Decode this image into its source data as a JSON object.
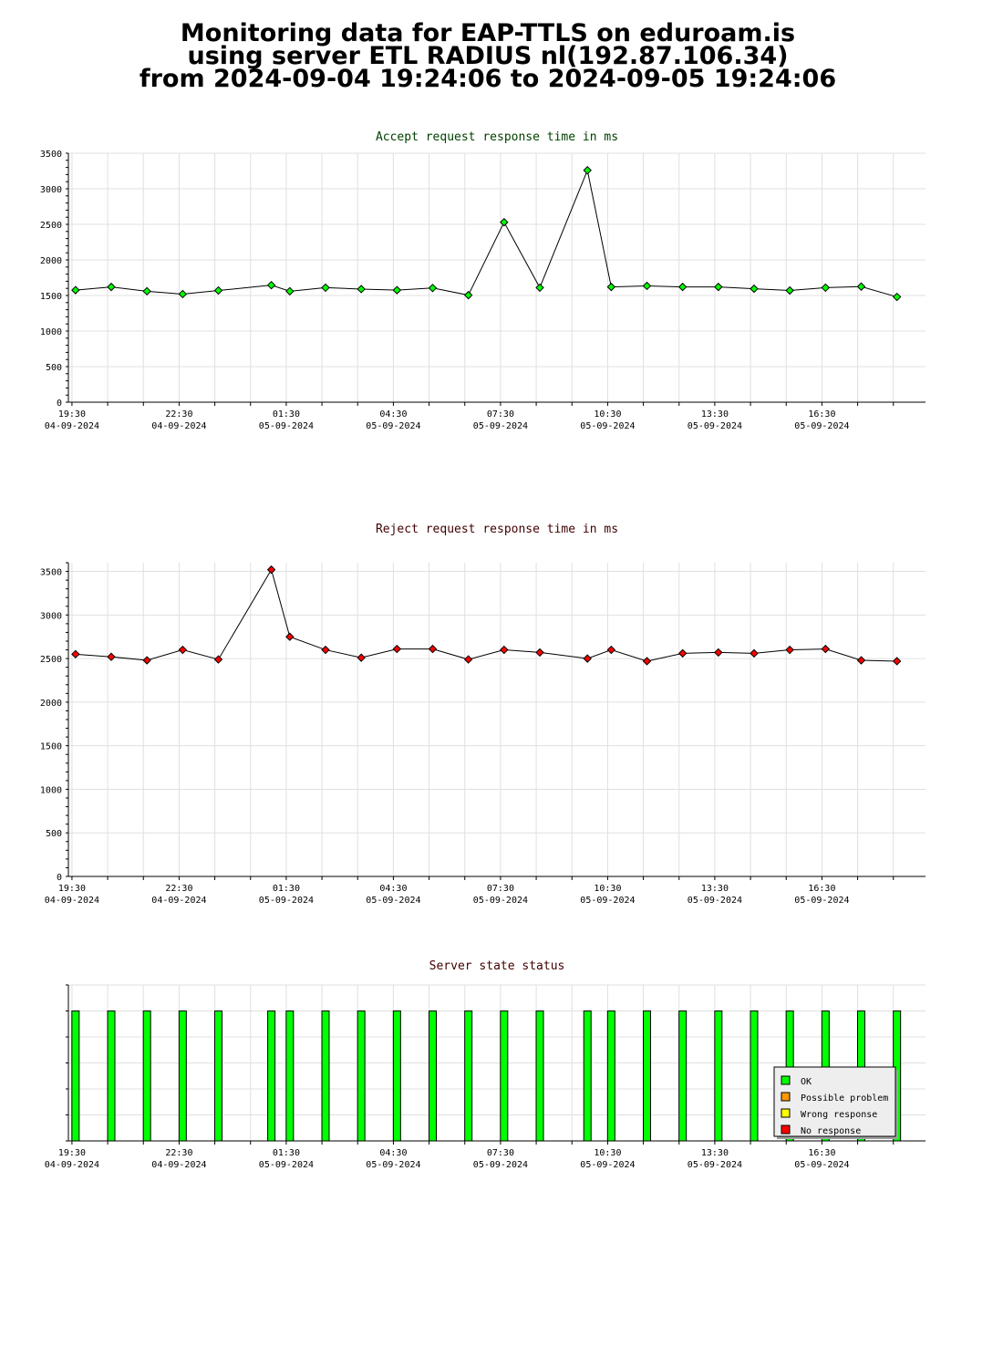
{
  "header": {
    "line1": "Monitoring data for EAP-TTLS on eduroam.is",
    "line2": "using server ETL RADIUS nl(192.87.106.34)",
    "line3": "from 2024-09-04 19:24:06 to 2024-09-05 19:24:06"
  },
  "colors": {
    "accept_title": "#004000",
    "reject_title": "#400000",
    "state_title": "#400000",
    "accept_point": "#00ff00",
    "reject_point": "#ff0000",
    "ok": "#00ff00",
    "possible_problem": "#ff9900",
    "wrong_response": "#ffff00",
    "no_response": "#ff0000"
  },
  "chart_data": [
    {
      "type": "line",
      "title": "Accept request response time in ms",
      "ylim": [
        0,
        3500
      ],
      "yticks": [
        0,
        500,
        1000,
        1500,
        2000,
        2500,
        3000,
        3500
      ],
      "xlim": [
        "2024-09-04 19:24",
        "2024-09-05 19:24"
      ],
      "x_tick_labels": [
        {
          "x": "2024-09-04 19:30",
          "time": "19:30",
          "date": "04-09-2024"
        },
        {
          "x": "2024-09-04 22:30",
          "time": "22:30",
          "date": "04-09-2024"
        },
        {
          "x": "2024-09-05 01:30",
          "time": "01:30",
          "date": "05-09-2024"
        },
        {
          "x": "2024-09-05 04:30",
          "time": "04:30",
          "date": "05-09-2024"
        },
        {
          "x": "2024-09-05 07:30",
          "time": "07:30",
          "date": "05-09-2024"
        },
        {
          "x": "2024-09-05 10:30",
          "time": "10:30",
          "date": "05-09-2024"
        },
        {
          "x": "2024-09-05 13:30",
          "time": "13:30",
          "date": "05-09-2024"
        },
        {
          "x": "2024-09-05 16:30",
          "time": "16:30",
          "date": "05-09-2024"
        }
      ],
      "grid": true,
      "series": [
        {
          "x": [
            "2024-09-04 19:36",
            "2024-09-04 20:36",
            "2024-09-04 21:36",
            "2024-09-04 22:36",
            "2024-09-04 23:36",
            "2024-09-05 01:05",
            "2024-09-05 01:36",
            "2024-09-05 02:36",
            "2024-09-05 03:36",
            "2024-09-05 04:36",
            "2024-09-05 05:36",
            "2024-09-05 06:36",
            "2024-09-05 07:36",
            "2024-09-05 08:36",
            "2024-09-05 09:56",
            "2024-09-05 10:36",
            "2024-09-05 11:36",
            "2024-09-05 12:36",
            "2024-09-05 13:36",
            "2024-09-05 14:36",
            "2024-09-05 15:36",
            "2024-09-05 16:36",
            "2024-09-05 17:36",
            "2024-09-05 18:36"
          ],
          "values": [
            1575,
            1620,
            1560,
            1520,
            1570,
            1645,
            1560,
            1610,
            1590,
            1575,
            1605,
            1505,
            2530,
            1610,
            3260,
            1620,
            1635,
            1620,
            1620,
            1595,
            1570,
            1610,
            1625,
            1480
          ]
        }
      ]
    },
    {
      "type": "line",
      "title": "Reject request response time in ms",
      "ylim": [
        0,
        3600
      ],
      "yticks": [
        0,
        500,
        1000,
        1500,
        2000,
        2500,
        3000,
        3500
      ],
      "xlim": [
        "2024-09-04 19:24",
        "2024-09-05 19:24"
      ],
      "x_tick_labels": [
        {
          "x": "2024-09-04 19:30",
          "time": "19:30",
          "date": "04-09-2024"
        },
        {
          "x": "2024-09-04 22:30",
          "time": "22:30",
          "date": "04-09-2024"
        },
        {
          "x": "2024-09-05 01:30",
          "time": "01:30",
          "date": "05-09-2024"
        },
        {
          "x": "2024-09-05 04:30",
          "time": "04:30",
          "date": "05-09-2024"
        },
        {
          "x": "2024-09-05 07:30",
          "time": "07:30",
          "date": "05-09-2024"
        },
        {
          "x": "2024-09-05 10:30",
          "time": "10:30",
          "date": "05-09-2024"
        },
        {
          "x": "2024-09-05 13:30",
          "time": "13:30",
          "date": "05-09-2024"
        },
        {
          "x": "2024-09-05 16:30",
          "time": "16:30",
          "date": "05-09-2024"
        }
      ],
      "grid": true,
      "series": [
        {
          "x": [
            "2024-09-04 19:36",
            "2024-09-04 20:36",
            "2024-09-04 21:36",
            "2024-09-04 22:36",
            "2024-09-04 23:36",
            "2024-09-05 01:05",
            "2024-09-05 01:36",
            "2024-09-05 02:36",
            "2024-09-05 03:36",
            "2024-09-05 04:36",
            "2024-09-05 05:36",
            "2024-09-05 06:36",
            "2024-09-05 07:36",
            "2024-09-05 08:36",
            "2024-09-05 09:56",
            "2024-09-05 10:36",
            "2024-09-05 11:36",
            "2024-09-05 12:36",
            "2024-09-05 13:36",
            "2024-09-05 14:36",
            "2024-09-05 15:36",
            "2024-09-05 16:36",
            "2024-09-05 17:36",
            "2024-09-05 18:36"
          ],
          "values": [
            2550,
            2520,
            2480,
            2600,
            2490,
            3520,
            2750,
            2600,
            2510,
            2610,
            2610,
            2490,
            2600,
            2570,
            2500,
            2600,
            2470,
            2560,
            2570,
            2560,
            2600,
            2610,
            2480,
            2470
          ]
        }
      ]
    },
    {
      "type": "bar",
      "title": "Server state status",
      "xlim": [
        "2024-09-04 19:24",
        "2024-09-05 19:24"
      ],
      "x_tick_labels": [
        {
          "x": "2024-09-04 19:30",
          "time": "19:30",
          "date": "04-09-2024"
        },
        {
          "x": "2024-09-04 22:30",
          "time": "22:30",
          "date": "04-09-2024"
        },
        {
          "x": "2024-09-05 01:30",
          "time": "01:30",
          "date": "05-09-2024"
        },
        {
          "x": "2024-09-05 04:30",
          "time": "04:30",
          "date": "05-09-2024"
        },
        {
          "x": "2024-09-05 07:30",
          "time": "07:30",
          "date": "05-09-2024"
        },
        {
          "x": "2024-09-05 10:30",
          "time": "10:30",
          "date": "05-09-2024"
        },
        {
          "x": "2024-09-05 13:30",
          "time": "13:30",
          "date": "05-09-2024"
        },
        {
          "x": "2024-09-05 16:30",
          "time": "16:30",
          "date": "05-09-2024"
        }
      ],
      "grid": true,
      "legend": {
        "position": "bottom-right",
        "items": [
          {
            "label": "OK",
            "color": "#00ff00"
          },
          {
            "label": "Possible problem",
            "color": "#ff9900"
          },
          {
            "label": "Wrong response",
            "color": "#ffff00"
          },
          {
            "label": "No response",
            "color": "#ff0000"
          }
        ]
      },
      "series": [
        {
          "x": [
            "2024-09-04 19:36",
            "2024-09-04 20:36",
            "2024-09-04 21:36",
            "2024-09-04 22:36",
            "2024-09-04 23:36",
            "2024-09-05 01:05",
            "2024-09-05 01:36",
            "2024-09-05 02:36",
            "2024-09-05 03:36",
            "2024-09-05 04:36",
            "2024-09-05 05:36",
            "2024-09-05 06:36",
            "2024-09-05 07:36",
            "2024-09-05 08:36",
            "2024-09-05 09:56",
            "2024-09-05 10:36",
            "2024-09-05 11:36",
            "2024-09-05 12:36",
            "2024-09-05 13:36",
            "2024-09-05 14:36",
            "2024-09-05 15:36",
            "2024-09-05 16:36",
            "2024-09-05 17:36",
            "2024-09-05 18:36"
          ],
          "states": [
            "OK",
            "OK",
            "OK",
            "OK",
            "OK",
            "OK",
            "OK",
            "OK",
            "OK",
            "OK",
            "OK",
            "OK",
            "OK",
            "OK",
            "OK",
            "OK",
            "OK",
            "OK",
            "OK",
            "OK",
            "OK",
            "OK",
            "OK",
            "OK"
          ]
        }
      ]
    }
  ]
}
